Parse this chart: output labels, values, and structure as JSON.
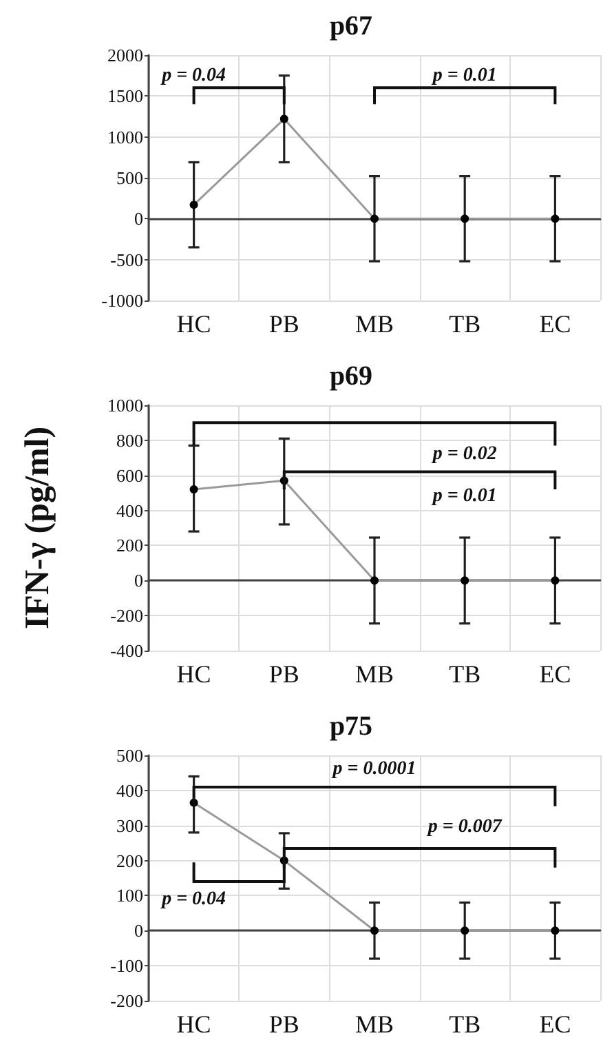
{
  "chart_data": [
    {
      "type": "line",
      "title": "p67",
      "categories": [
        "HC",
        "PB",
        "MB",
        "TB",
        "EC"
      ],
      "series": [
        {
          "color": "#9a9a9a",
          "values": [
            170,
            1220,
            0,
            0,
            0
          ],
          "errors": [
            [
              -350,
              690
            ],
            [
              690,
              1750
            ],
            [
              -520,
              520
            ],
            [
              -520,
              520
            ],
            [
              -520,
              520
            ]
          ]
        }
      ],
      "ylim": [
        -1000,
        2000
      ],
      "yticks": [
        -1000,
        -500,
        0,
        500,
        1000,
        1500,
        2000
      ],
      "grid": true,
      "marker": "circle",
      "annotations": [
        "p = 0.04",
        "p = 0.01"
      ]
    },
    {
      "type": "line",
      "title": "p69",
      "ylabel": "IFN-γ (pg/ml)",
      "categories": [
        "HC",
        "PB",
        "MB",
        "TB",
        "EC"
      ],
      "series": [
        {
          "color": "#9a9a9a",
          "values": [
            520,
            570,
            0,
            0,
            0
          ],
          "errors": [
            [
              280,
              770
            ],
            [
              320,
              810
            ],
            [
              -245,
              245
            ],
            [
              -245,
              245
            ],
            [
              -245,
              245
            ]
          ]
        }
      ],
      "ylim": [
        -400,
        1000
      ],
      "yticks": [
        -400,
        -200,
        0,
        200,
        400,
        600,
        800,
        1000
      ],
      "grid": true,
      "marker": "circle",
      "annotations": [
        "p = 0.02",
        "p = 0.01"
      ]
    },
    {
      "type": "line",
      "title": "p75",
      "categories": [
        "HC",
        "PB",
        "MB",
        "TB",
        "EC"
      ],
      "series": [
        {
          "color": "#9a9a9a",
          "values": [
            365,
            200,
            0,
            0,
            0
          ],
          "errors": [
            [
              280,
              440
            ],
            [
              120,
              278
            ],
            [
              -80,
              80
            ],
            [
              -80,
              80
            ],
            [
              -80,
              80
            ]
          ]
        }
      ],
      "ylim": [
        -200,
        500
      ],
      "yticks": [
        -200,
        -100,
        0,
        100,
        200,
        300,
        400,
        500
      ],
      "grid": true,
      "marker": "circle",
      "annotations": [
        "p = 0.0001",
        "p = 0.007",
        "p = 0.04"
      ]
    }
  ]
}
